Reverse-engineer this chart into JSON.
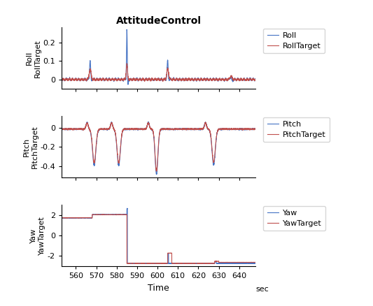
{
  "title": "AttitudeControl",
  "xlabel": "Time",
  "xunit": "sec",
  "xlim": [
    553,
    648
  ],
  "xticks": [
    560,
    570,
    580,
    590,
    600,
    610,
    620,
    630,
    640
  ],
  "roll_ylim": [
    -0.05,
    0.28
  ],
  "roll_yticks": [
    0,
    0.1,
    0.2
  ],
  "pitch_ylim": [
    -0.52,
    0.12
  ],
  "pitch_yticks": [
    -0.4,
    -0.2,
    0
  ],
  "yaw_ylim": [
    -3.0,
    3.0
  ],
  "yaw_yticks": [
    -2,
    0,
    2
  ],
  "roll_ylabel": "Roll\nRollTarget",
  "pitch_ylabel": "Pitch\nPitchTarget",
  "yaw_ylabel": "Yaw\nYawTarget",
  "color_signal": "#4472C4",
  "color_target": "#C0504D",
  "legend_roll": [
    "Roll",
    "RollTarget"
  ],
  "legend_pitch": [
    "Pitch",
    "PitchTarget"
  ],
  "legend_yaw": [
    "Yaw",
    "YawTarget"
  ],
  "bg_color": "#FFFFFF",
  "linewidth": 0.8
}
